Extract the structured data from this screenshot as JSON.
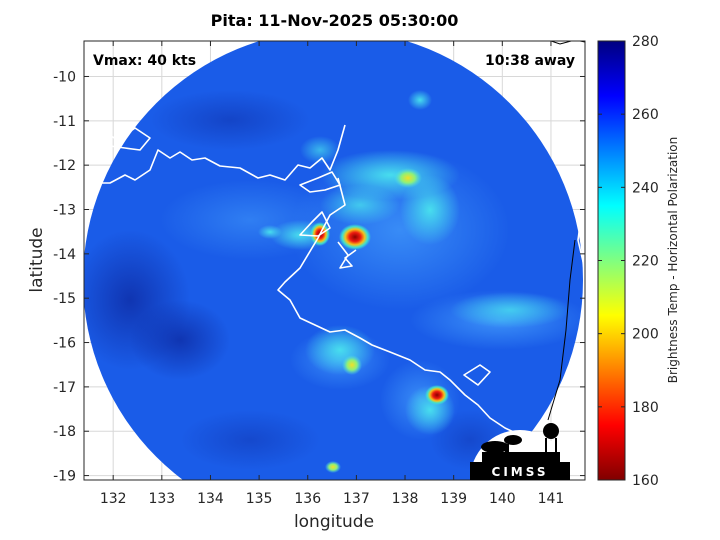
{
  "title": "Pita: 11-Nov-2025 05:30:00",
  "vmax_label": "Vmax: 40 kts",
  "away_label": "10:38 away",
  "logo_text": "CIMSS",
  "map": {
    "xlabel": "longitude",
    "ylabel": "latitude",
    "lon_range": [
      131.4,
      141.7
    ],
    "lat_range": [
      -19.1,
      -9.2
    ],
    "lon_ticks": [
      132,
      133,
      134,
      135,
      136,
      137,
      138,
      139,
      140,
      141
    ],
    "lat_ticks": [
      -10,
      -11,
      -12,
      -13,
      -14,
      -15,
      -16,
      -17,
      -18,
      -19
    ],
    "lon_tick_labels": [
      "132",
      "133",
      "134",
      "135",
      "136",
      "137",
      "138",
      "139",
      "140",
      "141"
    ],
    "lat_tick_labels": [
      "-10",
      "-11",
      "-12",
      "-13",
      "-14",
      "-15",
      "-16",
      "-17",
      "-18",
      "-19"
    ],
    "grid": true
  },
  "colorbar": {
    "label": "Brightness Temp - Horizontal Polarization",
    "range": [
      160,
      280
    ],
    "ticks": [
      160,
      180,
      200,
      220,
      240,
      260,
      280
    ],
    "tick_labels": [
      "160",
      "180",
      "200",
      "220",
      "240",
      "260",
      "280"
    ],
    "colormap": "jet"
  },
  "colors": {
    "background_blue": "#1a5ce8",
    "core_red": "#d8100e",
    "coastline": "#ffffff"
  }
}
